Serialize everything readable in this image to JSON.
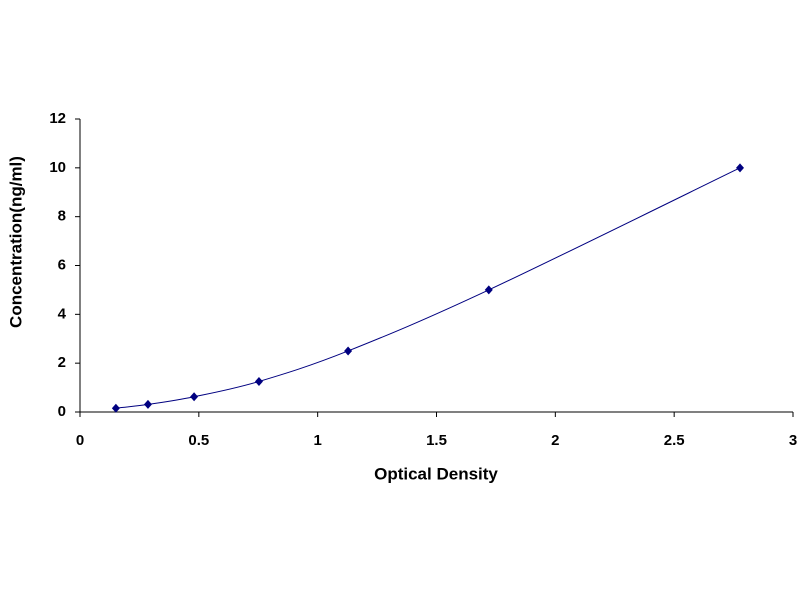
{
  "chart_data": {
    "type": "scatter",
    "x_label": "Optical Density",
    "y_label": "Concentration(ng/ml)",
    "x": [
      0.151,
      0.286,
      0.48,
      0.753,
      1.128,
      1.72,
      2.777
    ],
    "series": [
      {
        "color": "#000080",
        "values": [
          0.156,
          0.312,
          0.625,
          1.25,
          2.5,
          5,
          10
        ]
      }
    ],
    "smooth_line": true,
    "xlim": [
      0,
      3
    ],
    "xticks": [
      0,
      0.5,
      1,
      1.5,
      2,
      2.5,
      3
    ],
    "ylim": [
      0,
      12
    ],
    "yticks": [
      0,
      2,
      4,
      6,
      8,
      10,
      12
    ],
    "grid": false
  }
}
